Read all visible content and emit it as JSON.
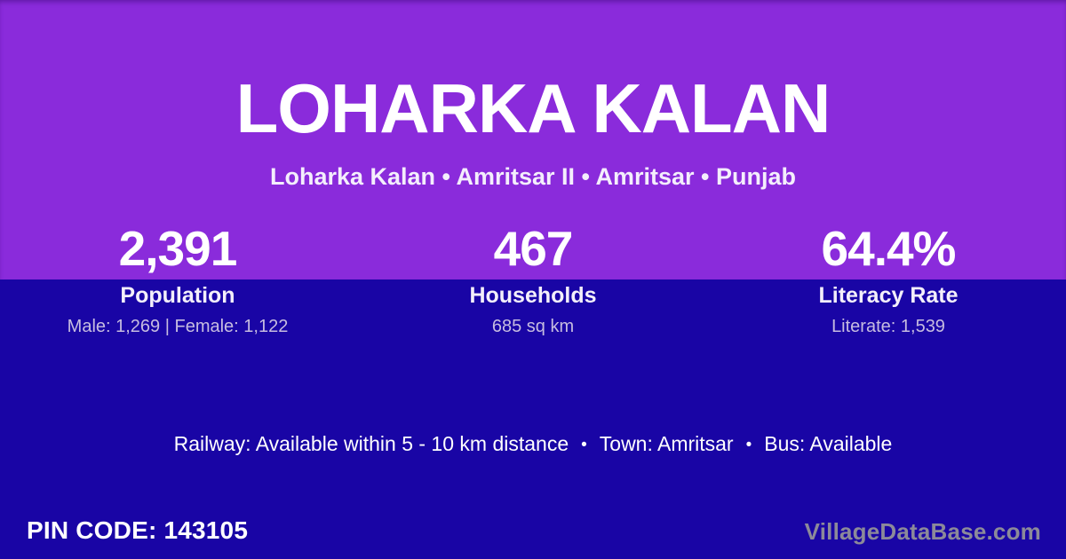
{
  "header": {
    "title": "LOHARKA KALAN",
    "breadcrumb": "Loharka Kalan • Amritsar II • Amritsar • Punjab"
  },
  "stats": [
    {
      "value": "2,391",
      "label": "Population",
      "detail": "Male: 1,269 | Female: 1,122"
    },
    {
      "value": "467",
      "label": "Households",
      "detail": "685 sq km"
    },
    {
      "value": "64.4%",
      "label": "Literacy Rate",
      "detail": "Literate: 1,539"
    }
  ],
  "amenities": {
    "items": [
      "Railway: Available within 5 - 10 km distance",
      "Town: Amritsar",
      "Bus: Available"
    ],
    "separator": "•"
  },
  "footer": {
    "pin_code": "PIN CODE: 143105",
    "watermark": "VillageDataBase.com"
  },
  "colors": {
    "top_background": "#8a2bdb",
    "bottom_background": "#1905a5",
    "primary_text": "#ffffff",
    "detail_text": "#c6bce0",
    "watermark_text": "#8c8a99"
  }
}
